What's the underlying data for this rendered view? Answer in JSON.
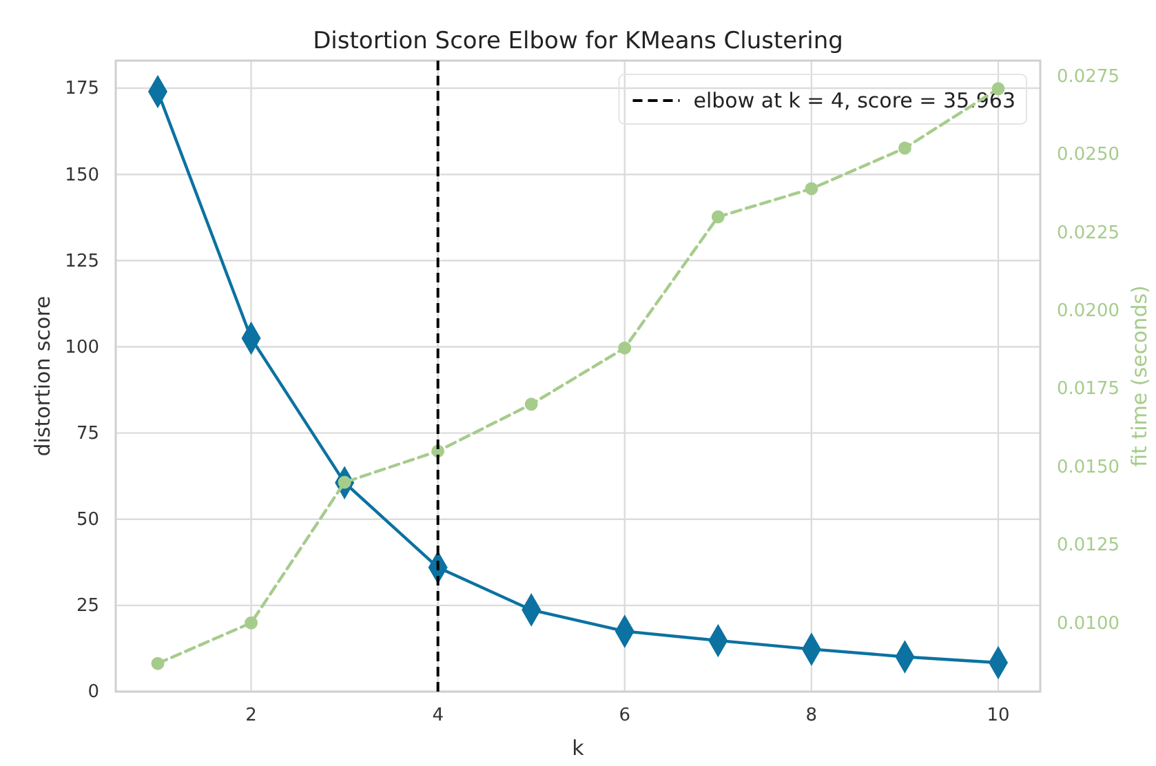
{
  "chart_data": {
    "type": "line",
    "title": "Distortion Score Elbow for KMeans Clustering",
    "xlabel": "k",
    "ylabel": "distortion score",
    "y2label": "fit time (seconds)",
    "x": [
      1,
      2,
      3,
      4,
      5,
      6,
      7,
      8,
      9,
      10
    ],
    "xlim": [
      0.55,
      10.45
    ],
    "xticks": [
      2,
      4,
      6,
      8,
      10
    ],
    "ylim": [
      0,
      183
    ],
    "yticks": [
      0,
      25,
      50,
      75,
      100,
      125,
      150,
      175
    ],
    "y2lim": [
      0.0078,
      0.028
    ],
    "y2ticks": [
      {
        "value": 0.01,
        "label": "0.0100"
      },
      {
        "value": 0.0125,
        "label": "0.0125"
      },
      {
        "value": 0.015,
        "label": "0.0150"
      },
      {
        "value": 0.0175,
        "label": "0.0175"
      },
      {
        "value": 0.02,
        "label": "0.0200"
      },
      {
        "value": 0.0225,
        "label": "0.0225"
      },
      {
        "value": 0.025,
        "label": "0.0250"
      },
      {
        "value": 0.0275,
        "label": "0.0275"
      }
    ],
    "series": [
      {
        "color": "#0b72a1",
        "marker": "diamond",
        "line_style": "solid",
        "values": [
          174,
          102.5,
          60.6,
          36,
          23.7,
          17.5,
          14.8,
          12.3,
          10.1,
          8.4
        ]
      },
      {
        "color": "#a6cc8c",
        "marker": "circle",
        "line_style": "dashed",
        "axis": "y2",
        "values": [
          0.0087,
          0.01,
          0.0145,
          0.0155,
          0.017,
          0.0188,
          0.023,
          0.0239,
          0.0252,
          0.0271
        ]
      }
    ],
    "ref_lines": [
      {
        "axis": "x",
        "value": 4,
        "label": "elbow at k = 4, score = 35.963",
        "color": "#000000",
        "line_style": "dashed"
      }
    ],
    "grid": true,
    "legend": "top right"
  }
}
